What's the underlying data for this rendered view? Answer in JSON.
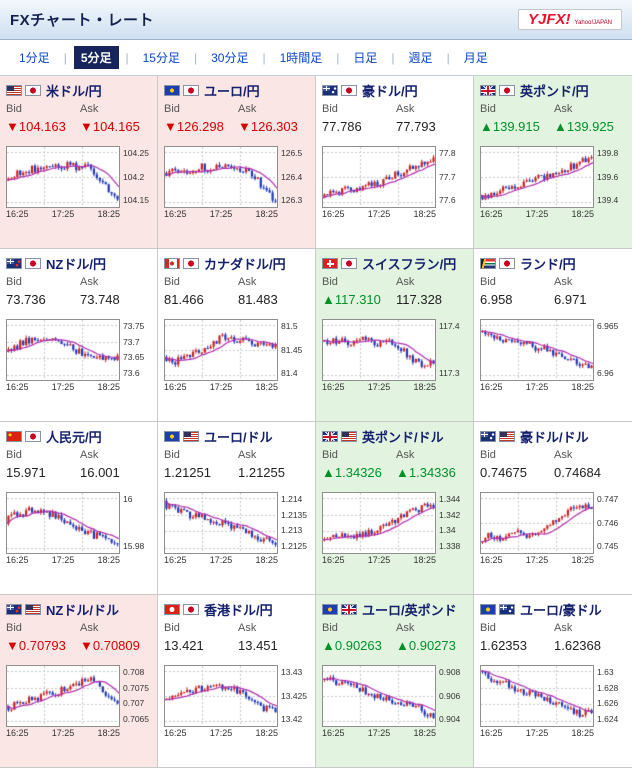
{
  "header": {
    "title": "FXチャート・レート",
    "logo_main": "YJFX!",
    "logo_sub": "Yahoo!JAPAN"
  },
  "timeframes": {
    "separator": "|",
    "items": [
      {
        "label": "1分足",
        "selected": false
      },
      {
        "label": "5分足",
        "selected": true
      },
      {
        "label": "15分足",
        "selected": false
      },
      {
        "label": "30分足",
        "selected": false
      },
      {
        "label": "1時間足",
        "selected": false
      },
      {
        "label": "日足",
        "selected": false
      },
      {
        "label": "週足",
        "selected": false
      },
      {
        "label": "月足",
        "selected": false
      }
    ]
  },
  "labels": {
    "bid": "Bid",
    "ask": "Ask"
  },
  "x_labels": [
    "16:25",
    "17:25",
    "18:25"
  ],
  "colors": {
    "up": "#009129",
    "down": "#d80000",
    "tile_up_bg": "#e2f4df",
    "tile_down_bg": "#fbe6e6",
    "candle_up": "#cc2222",
    "candle_down": "#2238b8",
    "ma_line": "#b02fb0",
    "selected_tab_bg": "#17255c"
  },
  "tiles": [
    {
      "pair": "米ドル/円",
      "flags": [
        "us",
        "jp"
      ],
      "state": "down",
      "bid": "▼104.163",
      "ask": "▼104.165",
      "bid_dir": "down",
      "ask_dir": "down",
      "y_labels": [
        "104.25",
        "104.2",
        "104.15"
      ],
      "trend": [
        0.55,
        0.45,
        0.4,
        0.35,
        0.4,
        0.3,
        0.35,
        0.25,
        0.35,
        0.3,
        0.55,
        0.75,
        0.85
      ],
      "seed": 1
    },
    {
      "pair": "ユーロ/円",
      "flags": [
        "eu",
        "jp"
      ],
      "state": "down",
      "bid": "▼126.298",
      "ask": "▼126.303",
      "bid_dir": "down",
      "ask_dir": "down",
      "y_labels": [
        "126.5",
        "126.4",
        "126.3"
      ],
      "trend": [
        0.45,
        0.4,
        0.35,
        0.4,
        0.3,
        0.35,
        0.3,
        0.35,
        0.4,
        0.35,
        0.55,
        0.8,
        0.9
      ],
      "seed": 2
    },
    {
      "pair": "豪ドル/円",
      "flags": [
        "au",
        "jp"
      ],
      "state": "flat",
      "bid": "77.786",
      "ask": "77.793",
      "bid_dir": "flat",
      "ask_dir": "flat",
      "y_labels": [
        "77.8",
        "77.7",
        "77.6"
      ],
      "trend": [
        0.85,
        0.8,
        0.75,
        0.7,
        0.72,
        0.65,
        0.6,
        0.55,
        0.45,
        0.4,
        0.3,
        0.25,
        0.2
      ],
      "seed": 3
    },
    {
      "pair": "英ポンド/円",
      "flags": [
        "gb",
        "jp"
      ],
      "state": "up",
      "bid": "▲139.915",
      "ask": "▲139.925",
      "bid_dir": "up",
      "ask_dir": "up",
      "y_labels": [
        "139.8",
        "139.6",
        "139.4"
      ],
      "trend": [
        0.9,
        0.85,
        0.8,
        0.7,
        0.65,
        0.6,
        0.55,
        0.5,
        0.4,
        0.35,
        0.3,
        0.2,
        0.15
      ],
      "seed": 4
    },
    {
      "pair": "NZドル/円",
      "flags": [
        "nz",
        "jp"
      ],
      "state": "flat",
      "bid": "73.736",
      "ask": "73.748",
      "bid_dir": "flat",
      "ask_dir": "flat",
      "y_labels": [
        "73.75",
        "73.7",
        "73.65",
        "73.6"
      ],
      "trend": [
        0.55,
        0.45,
        0.35,
        0.3,
        0.25,
        0.3,
        0.35,
        0.45,
        0.55,
        0.6,
        0.65,
        0.6,
        0.65
      ],
      "seed": 5
    },
    {
      "pair": "カナダドル/円",
      "flags": [
        "ca",
        "jp"
      ],
      "state": "flat",
      "bid": "81.466",
      "ask": "81.483",
      "bid_dir": "flat",
      "ask_dir": "flat",
      "y_labels": [
        "81.5",
        "81.45",
        "81.4"
      ],
      "trend": [
        0.7,
        0.75,
        0.65,
        0.6,
        0.5,
        0.4,
        0.3,
        0.25,
        0.35,
        0.3,
        0.4,
        0.45,
        0.4
      ],
      "seed": 6
    },
    {
      "pair": "スイスフラン/円",
      "flags": [
        "ch",
        "jp"
      ],
      "state": "up",
      "bid": "▲117.310",
      "ask": "117.328",
      "bid_dir": "up",
      "ask_dir": "flat",
      "y_labels": [
        "117.4",
        "117.3"
      ],
      "trend": [
        0.4,
        0.35,
        0.3,
        0.35,
        0.25,
        0.3,
        0.4,
        0.35,
        0.45,
        0.55,
        0.7,
        0.8,
        0.7
      ],
      "seed": 7
    },
    {
      "pair": "ランド/円",
      "flags": [
        "za",
        "jp"
      ],
      "state": "flat",
      "bid": "6.958",
      "ask": "6.971",
      "bid_dir": "flat",
      "ask_dir": "flat",
      "y_labels": [
        "6.965",
        "6.96"
      ],
      "trend": [
        0.2,
        0.25,
        0.3,
        0.35,
        0.3,
        0.4,
        0.45,
        0.5,
        0.55,
        0.6,
        0.7,
        0.8,
        0.85
      ],
      "seed": 8
    },
    {
      "pair": "人民元/円",
      "flags": [
        "cn",
        "jp"
      ],
      "state": "flat",
      "bid": "15.971",
      "ask": "16.001",
      "bid_dir": "flat",
      "ask_dir": "flat",
      "y_labels": [
        "16",
        "15.98"
      ],
      "trend": [
        0.45,
        0.35,
        0.3,
        0.25,
        0.3,
        0.35,
        0.45,
        0.5,
        0.6,
        0.7,
        0.75,
        0.85,
        0.9
      ],
      "seed": 9
    },
    {
      "pair": "ユーロ/ドル",
      "flags": [
        "eu",
        "us"
      ],
      "state": "flat",
      "bid": "1.21251",
      "ask": "1.21255",
      "bid_dir": "flat",
      "ask_dir": "flat",
      "y_labels": [
        "1.214",
        "1.2135",
        "1.213",
        "1.2125"
      ],
      "trend": [
        0.15,
        0.2,
        0.3,
        0.35,
        0.4,
        0.45,
        0.5,
        0.55,
        0.6,
        0.65,
        0.75,
        0.8,
        0.85
      ],
      "seed": 10
    },
    {
      "pair": "英ポンド/ドル",
      "flags": [
        "gb",
        "us"
      ],
      "state": "up",
      "bid": "▲1.34326",
      "ask": "▲1.34336",
      "bid_dir": "up",
      "ask_dir": "up",
      "y_labels": [
        "1.344",
        "1.342",
        "1.34",
        "1.338"
      ],
      "trend": [
        0.75,
        0.8,
        0.75,
        0.7,
        0.75,
        0.7,
        0.65,
        0.55,
        0.45,
        0.35,
        0.25,
        0.2,
        0.15
      ],
      "seed": 11
    },
    {
      "pair": "豪ドル/ドル",
      "flags": [
        "au",
        "us"
      ],
      "state": "flat",
      "bid": "0.74675",
      "ask": "0.74684",
      "bid_dir": "flat",
      "ask_dir": "flat",
      "y_labels": [
        "0.747",
        "0.746",
        "0.745"
      ],
      "trend": [
        0.8,
        0.75,
        0.8,
        0.75,
        0.7,
        0.72,
        0.68,
        0.6,
        0.5,
        0.35,
        0.25,
        0.2,
        0.25
      ],
      "seed": 12
    },
    {
      "pair": "NZドル/ドル",
      "flags": [
        "nz",
        "us"
      ],
      "state": "down",
      "bid": "▼0.70793",
      "ask": "▼0.70809",
      "bid_dir": "down",
      "ask_dir": "down",
      "y_labels": [
        "0.708",
        "0.7075",
        "0.707",
        "0.7065"
      ],
      "trend": [
        0.75,
        0.65,
        0.6,
        0.55,
        0.5,
        0.45,
        0.4,
        0.3,
        0.25,
        0.2,
        0.3,
        0.55,
        0.7
      ],
      "seed": 13
    },
    {
      "pair": "香港ドル/円",
      "flags": [
        "hk",
        "jp"
      ],
      "state": "flat",
      "bid": "13.421",
      "ask": "13.451",
      "bid_dir": "flat",
      "ask_dir": "flat",
      "y_labels": [
        "13.43",
        "13.425",
        "13.42"
      ],
      "trend": [
        0.6,
        0.55,
        0.45,
        0.4,
        0.35,
        0.3,
        0.35,
        0.3,
        0.4,
        0.5,
        0.6,
        0.75,
        0.8
      ],
      "seed": 14
    },
    {
      "pair": "ユーロ/英ポンド",
      "flags": [
        "eu",
        "gb"
      ],
      "state": "up",
      "bid": "▲0.90263",
      "ask": "▲0.90273",
      "bid_dir": "up",
      "ask_dir": "up",
      "y_labels": [
        "0.908",
        "0.906",
        "0.904"
      ],
      "trend": [
        0.15,
        0.2,
        0.25,
        0.3,
        0.35,
        0.45,
        0.5,
        0.55,
        0.6,
        0.65,
        0.7,
        0.8,
        0.85
      ],
      "seed": 15
    },
    {
      "pair": "ユーロ/豪ドル",
      "flags": [
        "eu",
        "au"
      ],
      "state": "flat",
      "bid": "1.62353",
      "ask": "1.62368",
      "bid_dir": "flat",
      "ask_dir": "flat",
      "y_labels": [
        "1.63",
        "1.628",
        "1.626",
        "1.624"
      ],
      "trend": [
        0.1,
        0.15,
        0.25,
        0.3,
        0.4,
        0.45,
        0.5,
        0.55,
        0.6,
        0.7,
        0.8,
        0.85,
        0.75
      ],
      "seed": 16
    }
  ]
}
